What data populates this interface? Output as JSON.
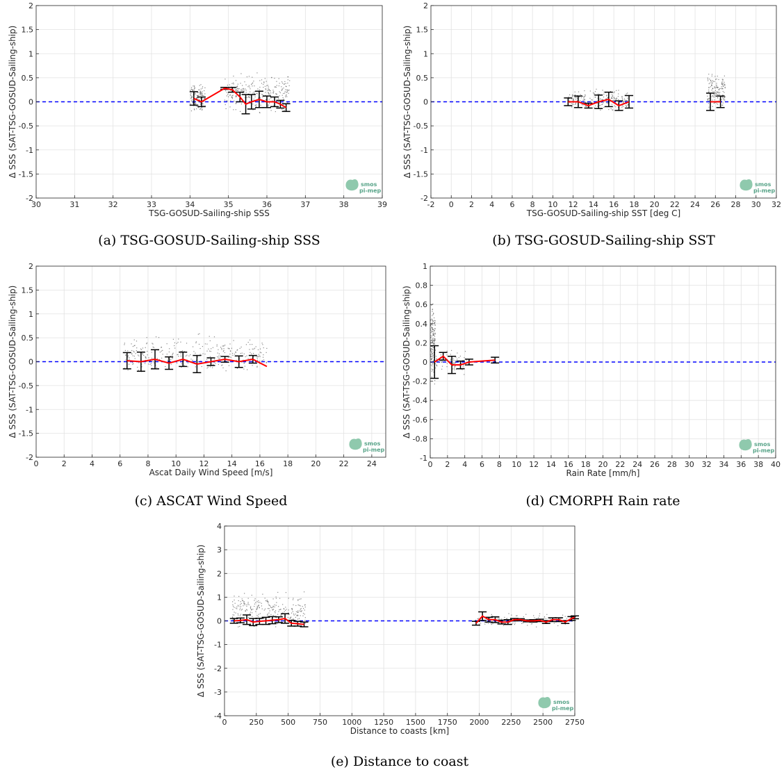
{
  "figure": {
    "logo_lines": [
      "smos",
      "pi-mep"
    ]
  },
  "chart_data": [
    {
      "type": "scatter",
      "title": "",
      "caption": "(a) TSG-GOSUD-Sailing-ship SSS",
      "xlabel": "TSG-GOSUD-Sailing-ship SSS",
      "ylabel": "Δ SSS (SAT-TSG-GOSUD-Sailing-ship)",
      "xlim": [
        30,
        39
      ],
      "ylim": [
        -2,
        2
      ],
      "xticks": [
        30,
        31,
        32,
        33,
        34,
        35,
        36,
        37,
        38,
        39
      ],
      "yticks": [
        -2,
        -1.5,
        -1,
        -0.5,
        0,
        0.5,
        1,
        1.5,
        2
      ],
      "grid": true,
      "zero_line_color": "#0000ff",
      "mean_line_color": "#ff0000",
      "scatter_clusters": [
        {
          "x": [
            34.0,
            34.4
          ],
          "y": [
            -0.28,
            0.45
          ],
          "n": 140
        },
        {
          "x": [
            34.9,
            36.6
          ],
          "y": [
            -0.3,
            0.7
          ],
          "n": 260
        }
      ],
      "bins": [
        {
          "x": 34.1,
          "mean": 0.07,
          "std": 0.14
        },
        {
          "x": 34.3,
          "mean": 0.0,
          "std": 0.1
        },
        {
          "x": 34.9,
          "mean": 0.28,
          "std": 0.02
        },
        {
          "x": 35.1,
          "mean": 0.25,
          "std": 0.05
        },
        {
          "x": 35.3,
          "mean": 0.1,
          "std": 0.1
        },
        {
          "x": 35.45,
          "mean": -0.05,
          "std": 0.2
        },
        {
          "x": 35.6,
          "mean": 0.0,
          "std": 0.15
        },
        {
          "x": 35.8,
          "mean": 0.05,
          "std": 0.17
        },
        {
          "x": 36.0,
          "mean": 0.0,
          "std": 0.12
        },
        {
          "x": 36.2,
          "mean": 0.0,
          "std": 0.1
        },
        {
          "x": 36.35,
          "mean": -0.05,
          "std": 0.08
        },
        {
          "x": 36.5,
          "mean": -0.12,
          "std": 0.08
        }
      ]
    },
    {
      "type": "scatter",
      "title": "",
      "caption": "(b) TSG-GOSUD-Sailing-ship SST",
      "xlabel": "TSG-GOSUD-Sailing-ship SST [deg C]",
      "ylabel": "Δ SSS (SAT-TSG-GOSUD-Sailing-ship)",
      "xlim": [
        -2,
        32
      ],
      "ylim": [
        -2,
        2
      ],
      "xticks": [
        -2,
        0,
        2,
        4,
        6,
        8,
        10,
        12,
        14,
        16,
        18,
        20,
        22,
        24,
        26,
        28,
        30,
        32
      ],
      "yticks": [
        -2,
        -1.5,
        -1,
        -0.5,
        0,
        0.5,
        1,
        1.5,
        2
      ],
      "grid": true,
      "zero_line_color": "#0000ff",
      "mean_line_color": "#ff0000",
      "scatter_clusters": [
        {
          "x": [
            11.5,
            17.5
          ],
          "y": [
            -0.25,
            0.3
          ],
          "n": 220
        },
        {
          "x": [
            25.2,
            27.0
          ],
          "y": [
            -0.3,
            0.7
          ],
          "n": 160
        }
      ],
      "bins": [
        {
          "x": 11.5,
          "mean": 0.0,
          "std": 0.08
        },
        {
          "x": 12.5,
          "mean": 0.0,
          "std": 0.12
        },
        {
          "x": 13.5,
          "mean": -0.08,
          "std": 0.05
        },
        {
          "x": 14.5,
          "mean": 0.0,
          "std": 0.14
        },
        {
          "x": 15.5,
          "mean": 0.05,
          "std": 0.15
        },
        {
          "x": 16.5,
          "mean": -0.08,
          "std": 0.1
        },
        {
          "x": 17.5,
          "mean": 0.0,
          "std": 0.13
        },
        {
          "x": 25.5,
          "mean": 0.0,
          "std": 0.18
        },
        {
          "x": 26.5,
          "mean": 0.0,
          "std": 0.12
        }
      ]
    },
    {
      "type": "scatter",
      "title": "",
      "caption": "(c) ASCAT Wind Speed",
      "xlabel": "Ascat Daily Wind Speed [m/s]",
      "ylabel": "Δ SSS (SAT-TSG-GOSUD-Sailing-ship)",
      "xlim": [
        0,
        25
      ],
      "ylim": [
        -2,
        2
      ],
      "xticks": [
        0,
        2,
        4,
        6,
        8,
        10,
        12,
        14,
        16,
        18,
        20,
        22,
        24
      ],
      "yticks": [
        -2,
        -1.5,
        -1,
        -0.5,
        0,
        0.5,
        1,
        1.5,
        2
      ],
      "grid": true,
      "zero_line_color": "#0000ff",
      "mean_line_color": "#ff0000",
      "scatter_clusters": [
        {
          "x": [
            6.3,
            16.5
          ],
          "y": [
            -0.35,
            0.65
          ],
          "n": 320
        }
      ],
      "bins": [
        {
          "x": 6.5,
          "mean": 0.02,
          "std": 0.17
        },
        {
          "x": 7.5,
          "mean": 0.0,
          "std": 0.2
        },
        {
          "x": 8.5,
          "mean": 0.05,
          "std": 0.2
        },
        {
          "x": 9.5,
          "mean": -0.03,
          "std": 0.13
        },
        {
          "x": 10.5,
          "mean": 0.05,
          "std": 0.15
        },
        {
          "x": 11.5,
          "mean": -0.05,
          "std": 0.18
        },
        {
          "x": 12.5,
          "mean": 0.0,
          "std": 0.08
        },
        {
          "x": 13.5,
          "mean": 0.05,
          "std": 0.06
        },
        {
          "x": 14.5,
          "mean": 0.0,
          "std": 0.12
        },
        {
          "x": 15.5,
          "mean": 0.05,
          "std": 0.08
        },
        {
          "x": 16.5,
          "mean": -0.1,
          "std": 0.0
        }
      ]
    },
    {
      "type": "scatter",
      "title": "",
      "caption": "(d) CMORPH Rain rate",
      "xlabel": "Rain Rate [mm/h]",
      "ylabel": "Δ SSS (SAT-TSG-GOSUD-Sailing-ship)",
      "xlim": [
        0,
        40
      ],
      "ylim": [
        -1,
        1
      ],
      "xticks": [
        0,
        2,
        4,
        6,
        8,
        10,
        12,
        14,
        16,
        18,
        20,
        22,
        24,
        26,
        28,
        30,
        32,
        34,
        36,
        38,
        40
      ],
      "yticks": [
        -1,
        -0.8,
        -0.6,
        -0.4,
        -0.2,
        0,
        0.2,
        0.4,
        0.6,
        0.8,
        1
      ],
      "grid": true,
      "zero_line_color": "#0000ff",
      "mean_line_color": "#ff0000",
      "scatter_clusters": [
        {
          "x": [
            0.0,
            0.6
          ],
          "y": [
            -0.35,
            0.75
          ],
          "n": 180
        },
        {
          "x": [
            0.6,
            4.5
          ],
          "y": [
            -0.15,
            0.15
          ],
          "n": 70
        }
      ],
      "bins": [
        {
          "x": 0.5,
          "mean": 0.0,
          "std": 0.17
        },
        {
          "x": 1.5,
          "mean": 0.06,
          "std": 0.04
        },
        {
          "x": 2.5,
          "mean": -0.03,
          "std": 0.09
        },
        {
          "x": 3.5,
          "mean": -0.03,
          "std": 0.04
        },
        {
          "x": 4.5,
          "mean": 0.0,
          "std": 0.03
        },
        {
          "x": 7.5,
          "mean": 0.02,
          "std": 0.03
        }
      ]
    },
    {
      "type": "scatter",
      "title": "",
      "caption": "(e) Distance to coast",
      "xlabel": "Distance to coasts [km]",
      "ylabel": "Δ SSS (SAT-TSG-GOSUD-Sailing-ship)",
      "xlim": [
        0,
        2750
      ],
      "ylim": [
        -4,
        4
      ],
      "xticks": [
        0,
        250,
        500,
        750,
        1000,
        1250,
        1500,
        1750,
        2000,
        2250,
        2500,
        2750
      ],
      "yticks": [
        -4,
        -3,
        -2,
        -1,
        0,
        1,
        2,
        3,
        4
      ],
      "grid": true,
      "zero_line_color": "#0000ff",
      "mean_line_color": "#ff0000",
      "scatter_clusters": [
        {
          "x": [
            60,
            640
          ],
          "y": [
            -0.5,
            1.4
          ],
          "n": 260
        },
        {
          "x": [
            1970,
            2750
          ],
          "y": [
            -0.3,
            0.4
          ],
          "n": 120
        }
      ],
      "bins": [
        {
          "x": 75,
          "mean": 0.0,
          "std": 0.1
        },
        {
          "x": 125,
          "mean": 0.02,
          "std": 0.1
        },
        {
          "x": 175,
          "mean": 0.05,
          "std": 0.2
        },
        {
          "x": 225,
          "mean": -0.05,
          "std": 0.15
        },
        {
          "x": 275,
          "mean": -0.02,
          "std": 0.13
        },
        {
          "x": 325,
          "mean": 0.0,
          "std": 0.15
        },
        {
          "x": 375,
          "mean": 0.03,
          "std": 0.15
        },
        {
          "x": 425,
          "mean": 0.05,
          "std": 0.12
        },
        {
          "x": 475,
          "mean": 0.1,
          "std": 0.2
        },
        {
          "x": 525,
          "mean": -0.1,
          "std": 0.12
        },
        {
          "x": 575,
          "mean": -0.12,
          "std": 0.1
        },
        {
          "x": 625,
          "mean": -0.15,
          "std": 0.1
        },
        {
          "x": 1975,
          "mean": -0.1,
          "std": 0.08
        },
        {
          "x": 2025,
          "mean": 0.2,
          "std": 0.18
        },
        {
          "x": 2075,
          "mean": 0.05,
          "std": 0.1
        },
        {
          "x": 2125,
          "mean": 0.05,
          "std": 0.12
        },
        {
          "x": 2175,
          "mean": -0.05,
          "std": 0.08
        },
        {
          "x": 2225,
          "mean": -0.05,
          "std": 0.1
        },
        {
          "x": 2275,
          "mean": 0.05,
          "std": 0.05
        },
        {
          "x": 2325,
          "mean": 0.05,
          "std": 0.04
        },
        {
          "x": 2375,
          "mean": 0.0,
          "std": 0.04
        },
        {
          "x": 2425,
          "mean": 0.0,
          "std": 0.05
        },
        {
          "x": 2475,
          "mean": 0.02,
          "std": 0.05
        },
        {
          "x": 2525,
          "mean": -0.05,
          "std": 0.06
        },
        {
          "x": 2575,
          "mean": 0.05,
          "std": 0.08
        },
        {
          "x": 2625,
          "mean": 0.05,
          "std": 0.08
        },
        {
          "x": 2675,
          "mean": -0.05,
          "std": 0.06
        },
        {
          "x": 2725,
          "mean": 0.1,
          "std": 0.08
        },
        {
          "x": 2750,
          "mean": 0.15,
          "std": 0.06
        }
      ]
    }
  ]
}
